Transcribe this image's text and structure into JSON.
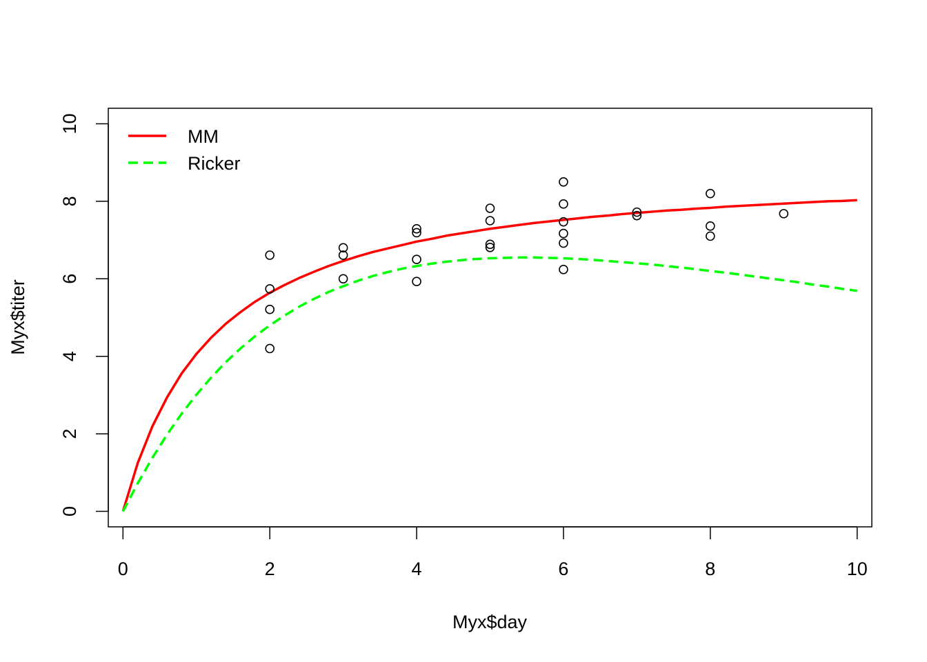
{
  "chart_data": {
    "type": "scatter",
    "title": "",
    "xlabel": "Myx$day",
    "ylabel": "Myx$titer",
    "xlim": [
      -0.2,
      10.2
    ],
    "ylim": [
      -0.4,
      10.4
    ],
    "x_ticks": [
      0,
      2,
      4,
      6,
      8,
      10
    ],
    "y_ticks": [
      0,
      2,
      4,
      6,
      8,
      10
    ],
    "x_tick_labels": [
      "0",
      "2",
      "4",
      "6",
      "8",
      "10"
    ],
    "y_tick_labels": [
      "0",
      "2",
      "4",
      "6",
      "8",
      "10"
    ],
    "grid": false,
    "legend_position": "top-left",
    "points": [
      {
        "x": 2,
        "y": 6.61
      },
      {
        "x": 2,
        "y": 5.74
      },
      {
        "x": 2,
        "y": 5.21
      },
      {
        "x": 2,
        "y": 4.2
      },
      {
        "x": 3,
        "y": 6.8
      },
      {
        "x": 3,
        "y": 6.61
      },
      {
        "x": 3,
        "y": 6.0
      },
      {
        "x": 4,
        "y": 7.29
      },
      {
        "x": 4,
        "y": 7.19
      },
      {
        "x": 4,
        "y": 6.5
      },
      {
        "x": 4,
        "y": 5.93
      },
      {
        "x": 5,
        "y": 7.82
      },
      {
        "x": 5,
        "y": 7.5
      },
      {
        "x": 5,
        "y": 6.89
      },
      {
        "x": 5,
        "y": 6.81
      },
      {
        "x": 6,
        "y": 8.5
      },
      {
        "x": 6,
        "y": 7.93
      },
      {
        "x": 6,
        "y": 7.47
      },
      {
        "x": 6,
        "y": 7.17
      },
      {
        "x": 6,
        "y": 6.92
      },
      {
        "x": 6,
        "y": 6.24
      },
      {
        "x": 7,
        "y": 7.72
      },
      {
        "x": 7,
        "y": 7.63
      },
      {
        "x": 8,
        "y": 8.2
      },
      {
        "x": 8,
        "y": 7.36
      },
      {
        "x": 8,
        "y": 7.1
      },
      {
        "x": 9,
        "y": 7.68
      }
    ],
    "curves": [
      {
        "name": "MM",
        "color": "#ff0000",
        "dash": "solid",
        "x": [
          0,
          0.2,
          0.4,
          0.6,
          0.8,
          1.0,
          1.2,
          1.4,
          1.6,
          1.8,
          2.0,
          2.2,
          2.4,
          2.6,
          2.8,
          3.0,
          3.2,
          3.4,
          3.6,
          3.8,
          4.0,
          4.2,
          4.4,
          4.6,
          4.8,
          5.0,
          5.2,
          5.4,
          5.6,
          5.8,
          6.0,
          6.2,
          6.4,
          6.6,
          6.8,
          7.0,
          7.2,
          7.4,
          7.6,
          7.8,
          8.0,
          8.2,
          8.4,
          8.6,
          8.8,
          9.0,
          9.2,
          9.4,
          9.6,
          9.8,
          10.0
        ],
        "y": [
          0.0,
          1.24,
          2.19,
          2.94,
          3.56,
          4.06,
          4.48,
          4.84,
          5.14,
          5.41,
          5.64,
          5.84,
          6.02,
          6.18,
          6.33,
          6.46,
          6.58,
          6.69,
          6.78,
          6.87,
          6.96,
          7.03,
          7.11,
          7.17,
          7.23,
          7.29,
          7.34,
          7.39,
          7.44,
          7.48,
          7.52,
          7.56,
          7.6,
          7.63,
          7.67,
          7.7,
          7.73,
          7.76,
          7.78,
          7.81,
          7.83,
          7.86,
          7.88,
          7.9,
          7.92,
          7.94,
          7.96,
          7.98,
          8.0,
          8.01,
          8.03
        ]
      },
      {
        "name": "Ricker",
        "color": "#00ff00",
        "dash": "dashed",
        "x": [
          0,
          0.2,
          0.4,
          0.6,
          0.8,
          1.0,
          1.2,
          1.4,
          1.6,
          1.8,
          2.0,
          2.2,
          2.4,
          2.6,
          2.8,
          3.0,
          3.2,
          3.4,
          3.6,
          3.8,
          4.0,
          4.2,
          4.4,
          4.6,
          4.8,
          5.0,
          5.2,
          5.4,
          5.6,
          5.8,
          6.0,
          6.2,
          6.4,
          6.6,
          6.8,
          7.0,
          7.2,
          7.4,
          7.6,
          7.8,
          8.0,
          8.2,
          8.4,
          8.6,
          8.8,
          9.0,
          9.2,
          9.4,
          9.6,
          9.8,
          10.0
        ],
        "y": [
          0.0,
          0.72,
          1.38,
          1.98,
          2.52,
          3.01,
          3.45,
          3.85,
          4.2,
          4.52,
          4.8,
          5.05,
          5.28,
          5.48,
          5.66,
          5.81,
          5.95,
          6.07,
          6.17,
          6.26,
          6.33,
          6.39,
          6.44,
          6.48,
          6.51,
          6.53,
          6.54,
          6.55,
          6.55,
          6.54,
          6.53,
          6.51,
          6.49,
          6.46,
          6.43,
          6.4,
          6.37,
          6.33,
          6.29,
          6.25,
          6.2,
          6.16,
          6.11,
          6.06,
          6.01,
          5.96,
          5.91,
          5.85,
          5.8,
          5.74,
          5.69
        ]
      }
    ],
    "legend": [
      {
        "label": "MM",
        "color": "#ff0000",
        "dash": "solid"
      },
      {
        "label": "Ricker",
        "color": "#00ff00",
        "dash": "dashed"
      }
    ]
  }
}
